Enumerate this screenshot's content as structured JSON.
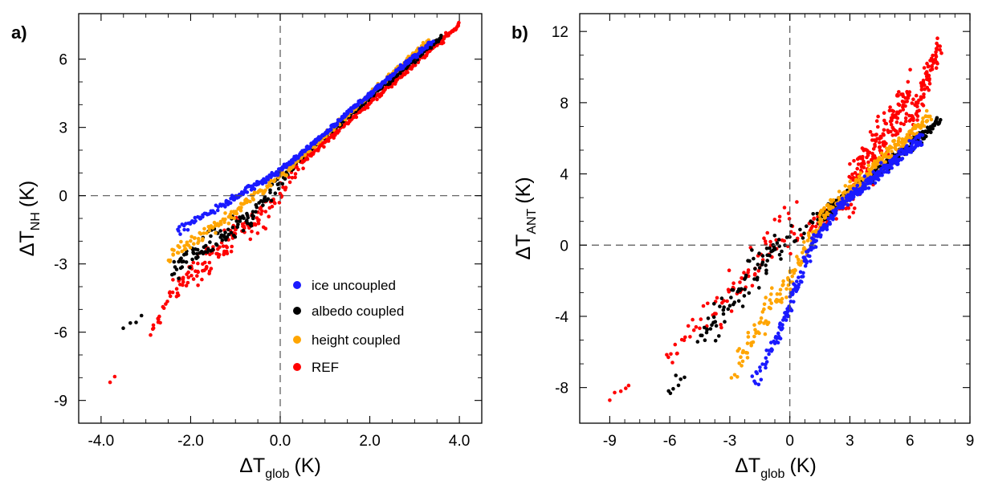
{
  "colors": {
    "ice_uncoupled": "#1a1aff",
    "albedo_coupled": "#000000",
    "height_coupled": "#ffa500",
    "REF": "#ff0000",
    "zero_line": "#555555"
  },
  "chart_data": [
    {
      "type": "scatter",
      "panel_label": "a)",
      "xlabel": {
        "main": "ΔT",
        "sub": "glob",
        "unit": "(K)"
      },
      "ylabel": {
        "main": "ΔT",
        "sub": "NH",
        "unit": "(K)"
      },
      "xlim": [
        -4.5,
        4.5
      ],
      "ylim": [
        -10.0,
        8.0
      ],
      "xticks": [
        -4,
        -2,
        0,
        2,
        4
      ],
      "xtick_labels": [
        "-4.0",
        "-2.0",
        "0.0",
        "2.0",
        "4.0"
      ],
      "yticks": [
        -9,
        -6,
        -3,
        0,
        3,
        6
      ],
      "ytick_labels": [
        "-9",
        "-6",
        "-3",
        "0",
        "3",
        "6"
      ],
      "zero_lines": true,
      "grid": false,
      "legend": {
        "placement": "bottom-right",
        "entries": [
          "ice uncoupled",
          "albedo coupled",
          "height coupled",
          "REF"
        ]
      },
      "series": [
        {
          "name": "ice uncoupled",
          "color_key": "ice_uncoupled",
          "segments": [
            {
              "x": [
                -2.3,
                -1.2
              ],
              "y": [
                -1.6,
                -0.3
              ],
              "n": 40,
              "spread": 0.15
            },
            {
              "x": [
                -1.2,
                0.0
              ],
              "y": [
                -0.3,
                1.1
              ],
              "n": 70,
              "spread": 0.12
            },
            {
              "x": [
                0.0,
                3.4
              ],
              "y": [
                1.1,
                6.8
              ],
              "n": 230,
              "spread": 0.1
            }
          ]
        },
        {
          "name": "albedo coupled",
          "color_key": "albedo_coupled",
          "segments": [
            {
              "x": [
                -3.5,
                -3.1
              ],
              "y": [
                -5.9,
                -5.3
              ],
              "n": 4,
              "spread": 0.15
            },
            {
              "x": [
                -2.4,
                -0.6
              ],
              "y": [
                -3.3,
                -0.8
              ],
              "n": 90,
              "spread": 0.45
            },
            {
              "x": [
                -0.6,
                0.4
              ],
              "y": [
                -0.8,
                1.6
              ],
              "n": 40,
              "spread": 0.3
            },
            {
              "x": [
                0.4,
                3.6
              ],
              "y": [
                1.6,
                7.0
              ],
              "n": 170,
              "spread": 0.1
            }
          ]
        },
        {
          "name": "height coupled",
          "color_key": "height_coupled",
          "segments": [
            {
              "x": [
                -2.5,
                -1.0
              ],
              "y": [
                -2.7,
                -0.7
              ],
              "n": 60,
              "spread": 0.25
            },
            {
              "x": [
                -1.0,
                0.2
              ],
              "y": [
                -0.7,
                1.2
              ],
              "n": 50,
              "spread": 0.2
            },
            {
              "x": [
                0.2,
                3.3
              ],
              "y": [
                1.2,
                6.8
              ],
              "n": 160,
              "spread": 0.1
            }
          ]
        },
        {
          "name": "REF",
          "color_key": "REF",
          "segments": [
            {
              "x": [
                -3.8,
                -3.7
              ],
              "y": [
                -8.3,
                -8.0
              ],
              "n": 2,
              "spread": 0.1
            },
            {
              "x": [
                -2.9,
                -2.3
              ],
              "y": [
                -6.0,
                -4.0
              ],
              "n": 20,
              "spread": 0.4
            },
            {
              "x": [
                -2.3,
                -0.3
              ],
              "y": [
                -4.0,
                -0.6
              ],
              "n": 110,
              "spread": 0.5
            },
            {
              "x": [
                -0.3,
                0.5
              ],
              "y": [
                -0.6,
                1.5
              ],
              "n": 30,
              "spread": 0.3
            },
            {
              "x": [
                0.5,
                4.0
              ],
              "y": [
                1.5,
                7.5
              ],
              "n": 220,
              "spread": 0.1
            }
          ]
        }
      ]
    },
    {
      "type": "scatter",
      "panel_label": "b)",
      "xlabel": {
        "main": "ΔT",
        "sub": "glob",
        "unit": "(K)"
      },
      "ylabel": {
        "main": "ΔT",
        "sub": "ANT",
        "unit": "(K)"
      },
      "xlim": [
        -10.5,
        9.0
      ],
      "ylim": [
        -10.0,
        13.0
      ],
      "xticks": [
        -9,
        -6,
        -3,
        0,
        3,
        6,
        9
      ],
      "xtick_labels": [
        "-9",
        "-6",
        "-3",
        "0",
        "3",
        "6",
        "9"
      ],
      "yticks": [
        -8,
        -4,
        0,
        4,
        8,
        12
      ],
      "ytick_labels": [
        "-8",
        "-4",
        "0",
        "4",
        "8",
        "12"
      ],
      "zero_lines": true,
      "grid": false,
      "series": [
        {
          "name": "ice uncoupled",
          "color_key": "ice_uncoupled",
          "segments": [
            {
              "x": [
                -1.8,
                -0.7
              ],
              "y": [
                -7.8,
                -5.5
              ],
              "n": 25,
              "spread": 0.5
            },
            {
              "x": [
                -0.7,
                1.2
              ],
              "y": [
                -5.5,
                0.2
              ],
              "n": 80,
              "spread": 0.5
            },
            {
              "x": [
                1.2,
                2.5
              ],
              "y": [
                0.2,
                2.2
              ],
              "n": 50,
              "spread": 0.3
            },
            {
              "x": [
                2.5,
                6.6
              ],
              "y": [
                2.2,
                6.0
              ],
              "n": 200,
              "spread": 0.3
            }
          ]
        },
        {
          "name": "albedo coupled",
          "color_key": "albedo_coupled",
          "segments": [
            {
              "x": [
                -6.1,
                -5.3
              ],
              "y": [
                -8.2,
                -7.2
              ],
              "n": 7,
              "spread": 0.4
            },
            {
              "x": [
                -4.5,
                -0.5
              ],
              "y": [
                -5.2,
                0.0
              ],
              "n": 70,
              "spread": 1.0
            },
            {
              "x": [
                -1.5,
                1.5
              ],
              "y": [
                -1.0,
                1.7
              ],
              "n": 25,
              "spread": 0.6
            },
            {
              "x": [
                1.5,
                7.5
              ],
              "y": [
                1.5,
                7.0
              ],
              "n": 230,
              "spread": 0.3
            }
          ]
        },
        {
          "name": "height coupled",
          "color_key": "height_coupled",
          "segments": [
            {
              "x": [
                -2.9,
                -2.4
              ],
              "y": [
                -7.6,
                -6.7
              ],
              "n": 5,
              "spread": 0.3
            },
            {
              "x": [
                -2.5,
                0.0
              ],
              "y": [
                -6.0,
                -2.0
              ],
              "n": 60,
              "spread": 0.7
            },
            {
              "x": [
                0.0,
                1.5
              ],
              "y": [
                -2.0,
                1.5
              ],
              "n": 40,
              "spread": 0.5
            },
            {
              "x": [
                1.5,
                7.0
              ],
              "y": [
                1.5,
                7.3
              ],
              "n": 200,
              "spread": 0.4
            }
          ]
        },
        {
          "name": "REF",
          "color_key": "REF",
          "segments": [
            {
              "x": [
                -9.0,
                -8.0
              ],
              "y": [
                -8.6,
                -7.6
              ],
              "n": 5,
              "spread": 0.3
            },
            {
              "x": [
                -6.2,
                -3.5
              ],
              "y": [
                -6.0,
                -3.5
              ],
              "n": 25,
              "spread": 0.9
            },
            {
              "x": [
                -3.5,
                0.5
              ],
              "y": [
                -3.5,
                1.5
              ],
              "n": 60,
              "spread": 1.2
            },
            {
              "x": [
                1.0,
                3.0
              ],
              "y": [
                1.0,
                2.5
              ],
              "n": 40,
              "spread": 0.4
            },
            {
              "x": [
                3.0,
                6.0
              ],
              "y": [
                3.0,
                8.5
              ],
              "n": 170,
              "spread": 1.2
            },
            {
              "x": [
                6.0,
                7.5
              ],
              "y": [
                6.5,
                11.5
              ],
              "n": 80,
              "spread": 0.8
            }
          ]
        }
      ]
    }
  ]
}
